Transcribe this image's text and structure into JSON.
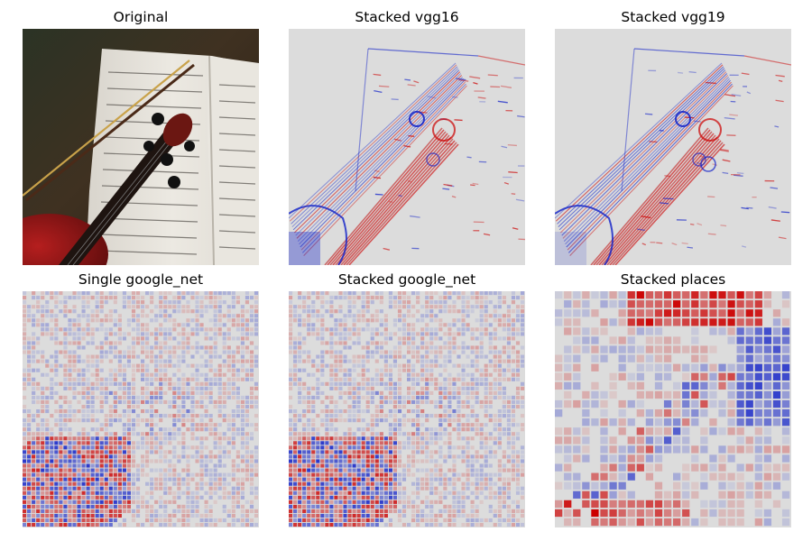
{
  "figure": {
    "panels": [
      {
        "title": "Original",
        "kind": "photo"
      },
      {
        "title": "Stacked vgg16",
        "kind": "saliency-fine"
      },
      {
        "title": "Stacked vgg19",
        "kind": "saliency-fine"
      },
      {
        "title": "Single google_net",
        "kind": "saliency-grid"
      },
      {
        "title": "Stacked google_net",
        "kind": "saliency-grid"
      },
      {
        "title": "Stacked places",
        "kind": "saliency-coarse"
      }
    ]
  },
  "colors": {
    "background": "#ffffff",
    "neutral": "#dcdcdc",
    "positive": "#cc0000",
    "negative": "#1020c8",
    "photo_wood": "#3a2a1c",
    "photo_violin": "#8a1414",
    "photo_paper": "#e6e2da"
  }
}
